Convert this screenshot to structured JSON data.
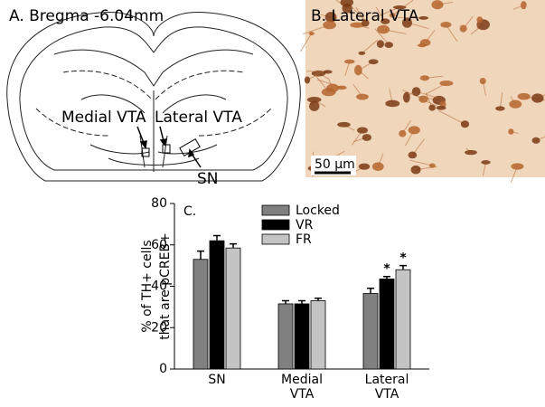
{
  "panel_a": {
    "label": "A. Bregma -6.04mm",
    "annotations": [
      "Medial VTA",
      "Lateral VTA",
      "SN"
    ]
  },
  "panel_b": {
    "label": "B. Lateral VTA",
    "scale_bar": "50 µm"
  },
  "chart_data": {
    "type": "bar",
    "panel_label": "C.",
    "y_label": [
      "% of TH+ cells",
      "that are pCREB+"
    ],
    "categories": [
      [
        "SN"
      ],
      [
        "Medial",
        "VTA"
      ],
      [
        "Lateral",
        "VTA"
      ]
    ],
    "series": [
      {
        "name": "Locked",
        "color": "#808080",
        "values": [
          53,
          31.5,
          36.5
        ],
        "errors": [
          4,
          1.5,
          2.5
        ]
      },
      {
        "name": "VR",
        "color": "#000000",
        "values": [
          62,
          31.5,
          43.5
        ],
        "errors": [
          2.5,
          1.5,
          1.2
        ]
      },
      {
        "name": "FR",
        "color": "#c4c4c4",
        "values": [
          58.5,
          33,
          48
        ],
        "errors": [
          2,
          1.2,
          2
        ]
      }
    ],
    "annotations": [
      "*",
      "*"
    ],
    "ylim": [
      0,
      80
    ],
    "yticks": [
      0,
      20,
      40,
      60,
      80
    ]
  }
}
